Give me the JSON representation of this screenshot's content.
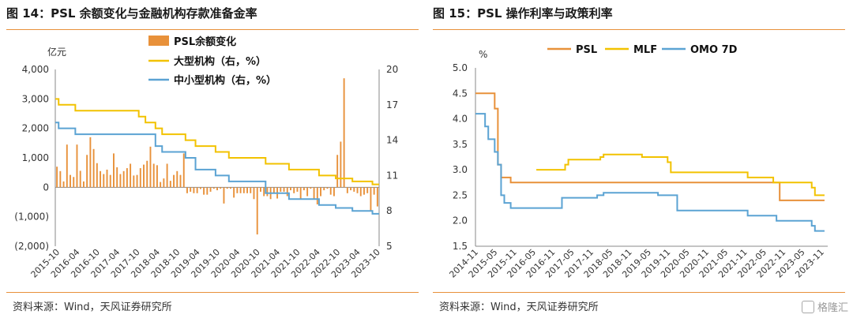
{
  "left_panel": {
    "title": "图 14：PSL 余额变化与金融机构存款准备金率",
    "source": "资料来源：Wind，天风证券研究所"
  },
  "right_panel": {
    "title": "图 15：PSL 操作利率与政策利率",
    "source": "资料来源：Wind，天风证券研究所"
  },
  "watermark": {
    "text": "格隆汇"
  },
  "colors": {
    "orange": "#E8913A",
    "yellow": "#F2C200",
    "blue": "#5BA3D3",
    "axis": "#888888"
  },
  "chart_data": [
    {
      "type": "bar+line",
      "title": "",
      "ylabel": "亿元",
      "ylim": [
        -2000,
        4000
      ],
      "y_ticks": [
        4000,
        3000,
        2000,
        1000,
        0,
        -1000,
        -2000
      ],
      "y_tick_labels": [
        "4,000",
        "3,000",
        "2,000",
        "1,000",
        "0",
        "(1,000)",
        "(2,000)"
      ],
      "y2lim": [
        5,
        20
      ],
      "y2_ticks": [
        20,
        17,
        14,
        11,
        8,
        5
      ],
      "x_start_month": "2015-10",
      "x_tick_labels": [
        "2015-10",
        "2016-04",
        "2016-10",
        "2017-04",
        "2017-10",
        "2018-04",
        "2018-10",
        "2019-04",
        "2019-10",
        "2020-04",
        "2020-10",
        "2021-04",
        "2021-10",
        "2022-04",
        "2022-10",
        "2023-04",
        "2023-10"
      ],
      "legend": [
        "PSL余额变化",
        "大型机构（右，%）",
        "中小型机构（右，%）"
      ],
      "legend_position": "top",
      "series": [
        {
          "name": "PSL余额变化",
          "kind": "bar",
          "axis": "left",
          "values": [
            700,
            550,
            200,
            1450,
            420,
            350,
            1450,
            560,
            200,
            1100,
            1700,
            1300,
            820,
            550,
            450,
            600,
            420,
            1150,
            680,
            450,
            550,
            650,
            800,
            400,
            420,
            650,
            770,
            900,
            1380,
            800,
            750,
            180,
            300,
            800,
            220,
            420,
            550,
            420,
            1150,
            -200,
            -150,
            -200,
            -200,
            -60,
            -250,
            -250,
            -150,
            -50,
            -100,
            -50,
            -550,
            -50,
            -50,
            -350,
            -200,
            -200,
            -200,
            -200,
            -200,
            -400,
            -1600,
            -150,
            -300,
            -300,
            -400,
            -200,
            -380,
            -150,
            -150,
            -300,
            -100,
            -200,
            -150,
            -400,
            -100,
            -300,
            -50,
            -400,
            -580,
            -300,
            -100,
            -50,
            -250,
            -300,
            1100,
            1550,
            3700,
            -200,
            -100,
            -150,
            -200,
            -300,
            -250,
            -200,
            -800,
            -250,
            -650
          ]
        },
        {
          "name": "大型机构（右，%）",
          "kind": "line",
          "axis": "right",
          "steps": [
            [
              0,
              17.5
            ],
            [
              1,
              17.0
            ],
            [
              6,
              16.5
            ],
            [
              25,
              16.0
            ],
            [
              27,
              15.5
            ],
            [
              30,
              15.0
            ],
            [
              32,
              14.5
            ],
            [
              39,
              14.0
            ],
            [
              42,
              13.5
            ],
            [
              48,
              13.0
            ],
            [
              52,
              12.5
            ],
            [
              63,
              12.0
            ],
            [
              70,
              11.5
            ],
            [
              79,
              11.0
            ],
            [
              84,
              10.75
            ],
            [
              89,
              10.5
            ],
            [
              95,
              10.25
            ]
          ]
        },
        {
          "name": "中小型机构（右，%）",
          "kind": "line",
          "axis": "right",
          "steps": [
            [
              0,
              15.5
            ],
            [
              1,
              15.0
            ],
            [
              6,
              14.5
            ],
            [
              30,
              13.5
            ],
            [
              32,
              13.0
            ],
            [
              39,
              12.5
            ],
            [
              42,
              11.5
            ],
            [
              48,
              11.0
            ],
            [
              52,
              10.5
            ],
            [
              63,
              9.5
            ],
            [
              70,
              9.0
            ],
            [
              79,
              8.5
            ],
            [
              84,
              8.25
            ],
            [
              89,
              8.0
            ],
            [
              95,
              7.75
            ]
          ]
        }
      ]
    },
    {
      "type": "line",
      "title": "",
      "ylabel": "%",
      "ylim": [
        1.5,
        5.0
      ],
      "y_ticks": [
        5.0,
        4.5,
        4.0,
        3.5,
        3.0,
        2.5,
        2.0,
        1.5
      ],
      "x_start_month": "2014-11",
      "x_tick_labels": [
        "2014-11",
        "2015-05",
        "2015-11",
        "2016-05",
        "2016-11",
        "2017-05",
        "2017-11",
        "2018-05",
        "2018-11",
        "2019-05",
        "2019-11",
        "2020-05",
        "2020-11",
        "2021-05",
        "2021-11",
        "2022-05",
        "2022-11",
        "2023-05",
        "2023-11"
      ],
      "legend": [
        "PSL",
        "MLF",
        "OMO 7D"
      ],
      "legend_position": "top",
      "series": [
        {
          "name": "PSL",
          "steps": [
            [
              0,
              4.5
            ],
            [
              6,
              4.2
            ],
            [
              7,
              3.1
            ],
            [
              8,
              2.85
            ],
            [
              11,
              2.75
            ],
            [
              95,
              2.4
            ]
          ],
          "end": 109
        },
        {
          "name": "MLF",
          "steps": [
            [
              19,
              3.0
            ],
            [
              28,
              3.1
            ],
            [
              29,
              3.2
            ],
            [
              39,
              3.25
            ],
            [
              40,
              3.3
            ],
            [
              52,
              3.25
            ],
            [
              60,
              3.15
            ],
            [
              61,
              2.95
            ],
            [
              85,
              2.85
            ],
            [
              93,
              2.75
            ],
            [
              105,
              2.65
            ],
            [
              106,
              2.5
            ]
          ],
          "end": 109
        },
        {
          "name": "OMO 7D",
          "steps": [
            [
              0,
              4.1
            ],
            [
              3,
              3.85
            ],
            [
              4,
              3.6
            ],
            [
              6,
              3.35
            ],
            [
              7,
              3.1
            ],
            [
              8,
              2.5
            ],
            [
              9,
              2.35
            ],
            [
              11,
              2.25
            ],
            [
              27,
              2.45
            ],
            [
              38,
              2.5
            ],
            [
              40,
              2.55
            ],
            [
              57,
              2.5
            ],
            [
              63,
              2.2
            ],
            [
              85,
              2.1
            ],
            [
              94,
              2.0
            ],
            [
              105,
              1.9
            ],
            [
              106,
              1.8
            ]
          ],
          "end": 109
        }
      ]
    }
  ]
}
